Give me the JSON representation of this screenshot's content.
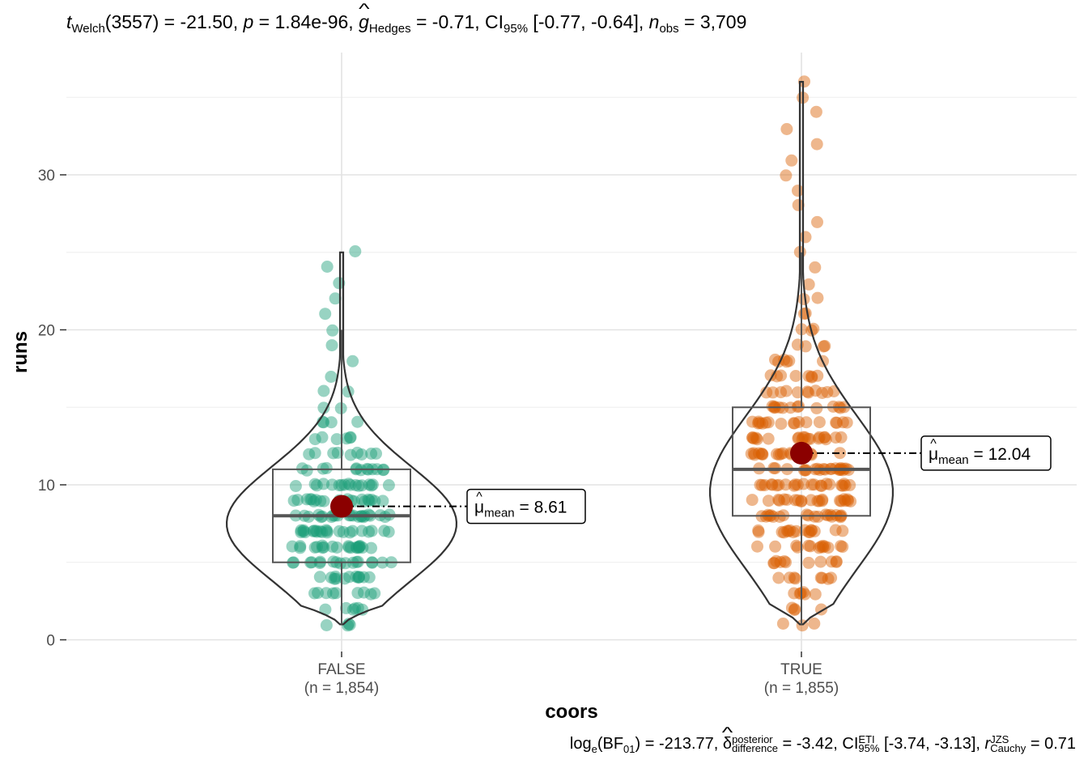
{
  "subtitle": {
    "t_symbol": "t",
    "t_sub": "Welch",
    "df": "(3557)",
    "t_value": " = -21.50, ",
    "p_symbol": "p",
    "p_value": " = 1.84e-96, ",
    "g_symbol": "g",
    "g_sub": "Hedges",
    "g_value": " = -0.71, CI",
    "ci_sub": "95%",
    "ci_value": " [-0.77, -0.64], ",
    "n_symbol": "n",
    "n_sub": "obs",
    "n_value": " = 3,709"
  },
  "caption": {
    "log": "log",
    "log_sub": "e",
    "bf": "(BF",
    "bf_sub": "01",
    "bf_value": ") = -213.77, ",
    "delta": "δ",
    "delta_sup": "posterior",
    "delta_sub": "difference",
    "delta_value": " = -3.42, CI",
    "ci_sup": "ETI",
    "ci_sub": "95%",
    "ci_value": " [-3.74, -3.13], ",
    "r": "r",
    "r_sup": "JZS",
    "r_sub": "Cauchy",
    "r_value": " = 0.71"
  },
  "chart_data": {
    "type": "violin-box-scatter",
    "xlabel": "coors",
    "ylabel": "runs",
    "ylim": [
      0,
      37
    ],
    "y_ticks": [
      0,
      10,
      20,
      30
    ],
    "grid": true,
    "groups": [
      {
        "category": "FALSE",
        "n_label": "(n = 1,854)",
        "color": "#1b9e77",
        "box": {
          "min": 1,
          "q1": 5,
          "median": 8,
          "q3": 11,
          "max": 20
        },
        "mean": 8.61,
        "mean_label": "= 8.61",
        "range": [
          1,
          25
        ]
      },
      {
        "category": "TRUE",
        "n_label": "(n = 1,855)",
        "color": "#d95f02",
        "box": {
          "min": 1,
          "q1": 8,
          "median": 11,
          "q3": 15,
          "max": 25
        },
        "mean": 12.04,
        "mean_label": "= 12.04",
        "range": [
          1,
          36
        ]
      }
    ],
    "mean_label_prefix": "μ",
    "mean_label_sub": "mean",
    "mean_color": "#8b0000"
  }
}
